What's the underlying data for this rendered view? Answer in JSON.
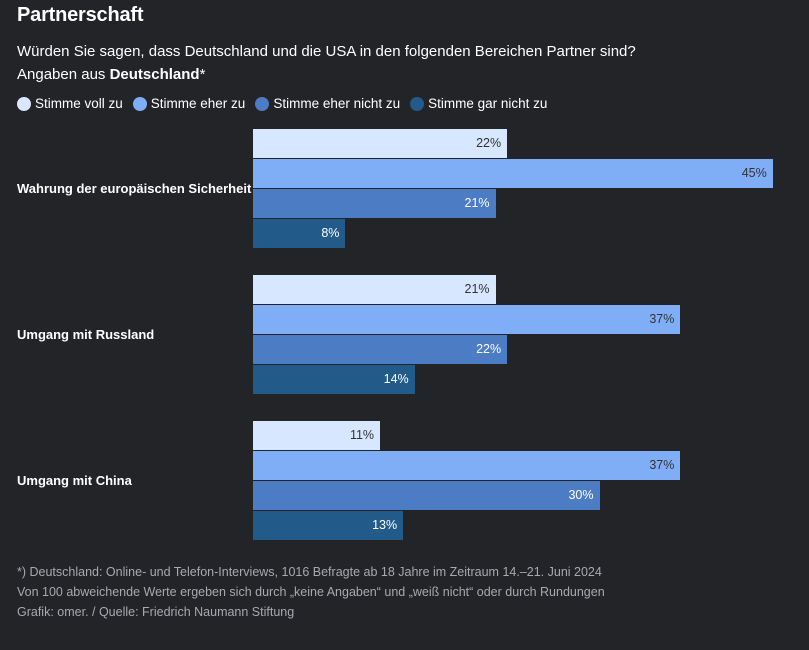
{
  "title": "Partnerschaft",
  "subtitle_line1": "Würden Sie sagen, dass Deutschland und die USA in den folgenden Bereichen Partner sind?",
  "subtitle_line2_prefix": "Angaben aus ",
  "subtitle_line2_bold": "Deutschland",
  "subtitle_line2_suffix": "*",
  "footer": [
    "*) Deutschland: Online- und Telefon-Interviews, 1016 Befragte ab 18 Jahre im Zeitraum 14.–21. Juni 2024",
    "Von 100 abweichende Werte ergeben sich durch „keine Angaben“ und „weiß nicht“ oder durch Rundungen",
    "Grafik: omer. / Quelle: Friedrich Naumann Stiftung"
  ],
  "colors": {
    "background": "#232428",
    "voll": "#d7e7ff",
    "eher": "#7faef7",
    "eher_nicht": "#4b7cc4",
    "gar_nicht": "#225a8a"
  },
  "chart_data": {
    "type": "bar",
    "orientation": "horizontal",
    "title": "Partnerschaft",
    "categories": [
      "Wahrung der europäischen Sicherheit",
      "Umgang mit Russland",
      "Umgang mit China"
    ],
    "series": [
      {
        "name": "Stimme voll zu",
        "color": "#d7e7ff",
        "values": [
          22,
          21,
          11
        ]
      },
      {
        "name": "Stimme eher zu",
        "color": "#7faef7",
        "values": [
          45,
          37,
          37
        ]
      },
      {
        "name": "Stimme eher nicht zu",
        "color": "#4b7cc4",
        "values": [
          21,
          22,
          30
        ]
      },
      {
        "name": "Stimme gar nicht zu",
        "color": "#225a8a",
        "values": [
          8,
          14,
          13
        ]
      }
    ],
    "unit": "%",
    "legend": "top-left",
    "grid": false
  }
}
